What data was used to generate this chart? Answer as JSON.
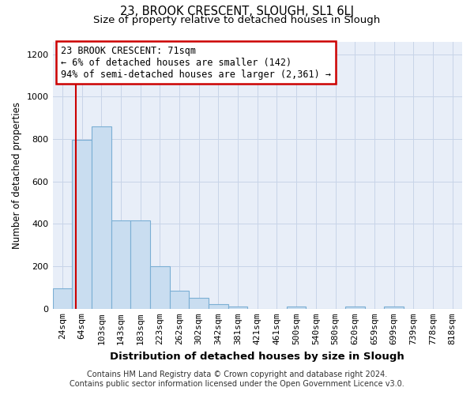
{
  "title": "23, BROOK CRESCENT, SLOUGH, SL1 6LJ",
  "subtitle": "Size of property relative to detached houses in Slough",
  "xlabel": "Distribution of detached houses by size in Slough",
  "ylabel": "Number of detached properties",
  "bar_labels": [
    "24sqm",
    "64sqm",
    "103sqm",
    "143sqm",
    "183sqm",
    "223sqm",
    "262sqm",
    "302sqm",
    "342sqm",
    "381sqm",
    "421sqm",
    "461sqm",
    "500sqm",
    "540sqm",
    "580sqm",
    "620sqm",
    "659sqm",
    "699sqm",
    "739sqm",
    "778sqm",
    "818sqm"
  ],
  "bar_values": [
    95,
    795,
    860,
    415,
    415,
    200,
    85,
    52,
    20,
    12,
    0,
    0,
    10,
    0,
    0,
    10,
    0,
    10,
    0,
    0,
    0
  ],
  "bar_color": "#c9ddf0",
  "bar_edge_color": "#7bafd4",
  "bar_edge_width": 0.8,
  "property_line_color": "#cc0000",
  "annotation_text": "23 BROOK CRESCENT: 71sqm\n← 6% of detached houses are smaller (142)\n94% of semi-detached houses are larger (2,361) →",
  "annotation_box_color": "#ffffff",
  "annotation_box_edge_color": "#cc0000",
  "ylim": [
    0,
    1260
  ],
  "yticks": [
    0,
    200,
    400,
    600,
    800,
    1000,
    1200
  ],
  "footer_line1": "Contains HM Land Registry data © Crown copyright and database right 2024.",
  "footer_line2": "Contains public sector information licensed under the Open Government Licence v3.0.",
  "background_color": "#ffffff",
  "plot_background_color": "#e8eef8",
  "grid_color": "#c8d4e8",
  "title_fontsize": 10.5,
  "subtitle_fontsize": 9.5,
  "xlabel_fontsize": 9.5,
  "ylabel_fontsize": 8.5,
  "tick_fontsize": 8,
  "footer_fontsize": 7,
  "annotation_fontsize": 8.5
}
